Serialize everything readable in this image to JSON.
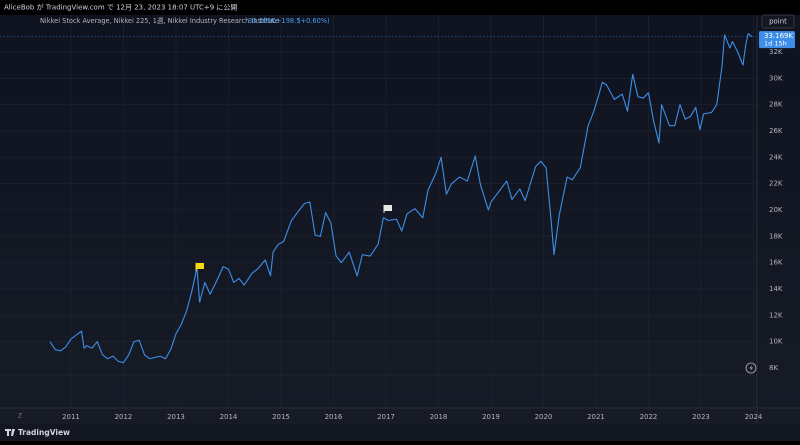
{
  "header": {
    "publisher": "AliceBob が TradingView.com で 12月 23, 2023 18:07 UTC+9 に公開"
  },
  "toolbar": {
    "button": "point"
  },
  "footer": {
    "brand": "TradingView",
    "axis_mode": "Z"
  },
  "chart_data": {
    "type": "line",
    "title": "Nikkei Stock Average, Nikkei 225, 1週, Nikkei Industry Research Institute",
    "last_value_label": "33.169K",
    "change_label": "+198.5",
    "change_pct_label": "(+0.60%)",
    "countdown": "1d 15h",
    "color": "#3d8ee8",
    "grid": true,
    "x": [
      2010.6,
      2010.7,
      2010.8,
      2010.9,
      2011.0,
      2011.1,
      2011.2,
      2011.25,
      2011.3,
      2011.4,
      2011.5,
      2011.6,
      2011.7,
      2011.8,
      2011.9,
      2012.0,
      2012.1,
      2012.2,
      2012.3,
      2012.4,
      2012.5,
      2012.6,
      2012.7,
      2012.8,
      2012.9,
      2013.0,
      2013.1,
      2013.2,
      2013.3,
      2013.4,
      2013.45,
      2013.55,
      2013.65,
      2013.75,
      2013.9,
      2014.0,
      2014.1,
      2014.2,
      2014.3,
      2014.45,
      2014.55,
      2014.7,
      2014.8,
      2014.85,
      2014.95,
      2015.05,
      2015.2,
      2015.35,
      2015.45,
      2015.55,
      2015.65,
      2015.75,
      2015.85,
      2015.95,
      2016.05,
      2016.15,
      2016.3,
      2016.45,
      2016.55,
      2016.7,
      2016.85,
      2016.95,
      2017.05,
      2017.2,
      2017.3,
      2017.4,
      2017.55,
      2017.7,
      2017.8,
      2017.95,
      2018.05,
      2018.15,
      2018.25,
      2018.4,
      2018.55,
      2018.7,
      2018.8,
      2018.95,
      2019.0,
      2019.15,
      2019.3,
      2019.4,
      2019.55,
      2019.65,
      2019.75,
      2019.85,
      2019.95,
      2020.05,
      2020.15,
      2020.2,
      2020.3,
      2020.45,
      2020.55,
      2020.7,
      2020.85,
      2020.95,
      2021.05,
      2021.12,
      2021.2,
      2021.35,
      2021.5,
      2021.6,
      2021.7,
      2021.8,
      2021.9,
      2022.0,
      2022.1,
      2022.2,
      2022.25,
      2022.4,
      2022.5,
      2022.6,
      2022.7,
      2022.8,
      2022.9,
      2022.98,
      2023.05,
      2023.2,
      2023.3,
      2023.4,
      2023.45,
      2023.55,
      2023.6,
      2023.7,
      2023.8,
      2023.85,
      2023.9,
      2023.97
    ],
    "values": [
      10000,
      9400,
      9300,
      9600,
      10200,
      10500,
      10800,
      9500,
      9700,
      9500,
      10000,
      9000,
      8700,
      8900,
      8500,
      8400,
      9000,
      10000,
      10100,
      9000,
      8700,
      8800,
      8900,
      8700,
      9400,
      10600,
      11300,
      12300,
      13800,
      15600,
      13000,
      14500,
      13600,
      14400,
      15700,
      15500,
      14500,
      14800,
      14300,
      15200,
      15500,
      16200,
      15000,
      16800,
      17400,
      17600,
      19200,
      20000,
      20500,
      20600,
      18100,
      18000,
      19800,
      19000,
      16500,
      16000,
      16800,
      15000,
      16600,
      16500,
      17400,
      19400,
      19200,
      19300,
      18400,
      19700,
      20100,
      19400,
      21500,
      22800,
      24000,
      21200,
      22000,
      22500,
      22200,
      24100,
      21900,
      20000,
      20600,
      21400,
      22200,
      20800,
      21600,
      20700,
      22000,
      23300,
      23700,
      23200,
      19000,
      16600,
      19600,
      22500,
      22300,
      23200,
      26400,
      27400,
      28700,
      29700,
      29500,
      28400,
      28800,
      27500,
      30300,
      28600,
      28500,
      28900,
      26700,
      25100,
      28000,
      26400,
      26400,
      28000,
      26900,
      27100,
      27800,
      26100,
      27300,
      27400,
      28000,
      30900,
      33300,
      32300,
      32800,
      32000,
      31000,
      32500,
      33400,
      33169
    ],
    "xlim": [
      2009.648,
      2024.067
    ],
    "xticks": [
      2011,
      2012,
      2013,
      2014,
      2015,
      2016,
      2017,
      2018,
      2019,
      2020,
      2021,
      2022,
      2023,
      2024
    ],
    "ylim": [
      4960,
      33670
    ],
    "yticks": [
      {
        "value": 8000,
        "label": "8K"
      },
      {
        "value": 10000,
        "label": "10K"
      },
      {
        "value": 12000,
        "label": "12K"
      },
      {
        "value": 14000,
        "label": "14K"
      },
      {
        "value": 16000,
        "label": "16K"
      },
      {
        "value": 18000,
        "label": "18K"
      },
      {
        "value": 20000,
        "label": "20K"
      },
      {
        "value": 22000,
        "label": "22K"
      },
      {
        "value": 24000,
        "label": "24K"
      },
      {
        "value": 26000,
        "label": "26K"
      },
      {
        "value": 28000,
        "label": "28K"
      },
      {
        "value": 30000,
        "label": "30K"
      },
      {
        "value": 32000,
        "label": "32K"
      }
    ]
  }
}
